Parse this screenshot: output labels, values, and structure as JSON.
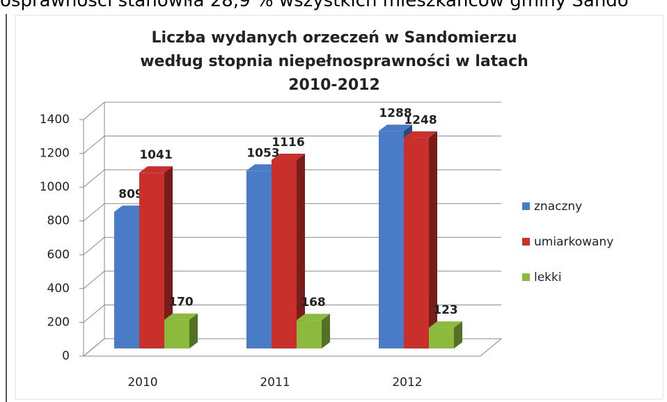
{
  "page_text": "osprawności stanowiła 28,9 % wszystkich mieszkańców gminy Sando",
  "chart_data": {
    "type": "bar3d",
    "title": "Liczba wydanych orzeczeń w Sandomierzu według stopnia niepełnosprawności w latach 2010-2012",
    "categories": [
      "2010",
      "2011",
      "2012"
    ],
    "series": [
      {
        "name": "znaczny",
        "color": "#4a7bc6",
        "values": [
          809,
          1053,
          1288
        ]
      },
      {
        "name": "umiarkowany",
        "color": "#c9302c",
        "values": [
          1041,
          1116,
          1248
        ]
      },
      {
        "name": "lekki",
        "color": "#8cba3c",
        "values": [
          170,
          168,
          123
        ]
      }
    ],
    "ylim": [
      0,
      1400
    ],
    "yticks": [
      0,
      200,
      400,
      600,
      800,
      1000,
      1200,
      1400
    ],
    "grid": true,
    "legend": "right"
  }
}
